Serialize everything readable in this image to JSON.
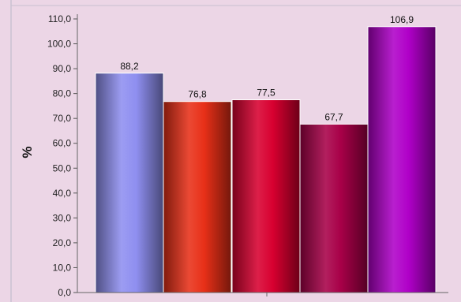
{
  "chart_data": {
    "type": "bar",
    "categories": [
      "",
      "",
      "",
      "",
      ""
    ],
    "values": [
      88.2,
      76.8,
      77.5,
      67.7,
      106.9
    ],
    "data_labels": [
      "88,2",
      "76,8",
      "77,5",
      "67,7",
      "106,9"
    ],
    "bar_colors": [
      "#8f8ff0",
      "#e83018",
      "#d80030",
      "#a80048",
      "#b000c8"
    ],
    "title": "",
    "xlabel": "",
    "ylabel": "%",
    "ylim": [
      0,
      110
    ],
    "ytick_step": 10,
    "ytick_labels": [
      "0,0",
      "10,0",
      "20,0",
      "30,0",
      "40,0",
      "50,0",
      "60,0",
      "70,0",
      "80,0",
      "90,0",
      "100,0",
      "110,0"
    ],
    "grid": false,
    "legend": "none",
    "plot_background": "#ecd6e6"
  }
}
